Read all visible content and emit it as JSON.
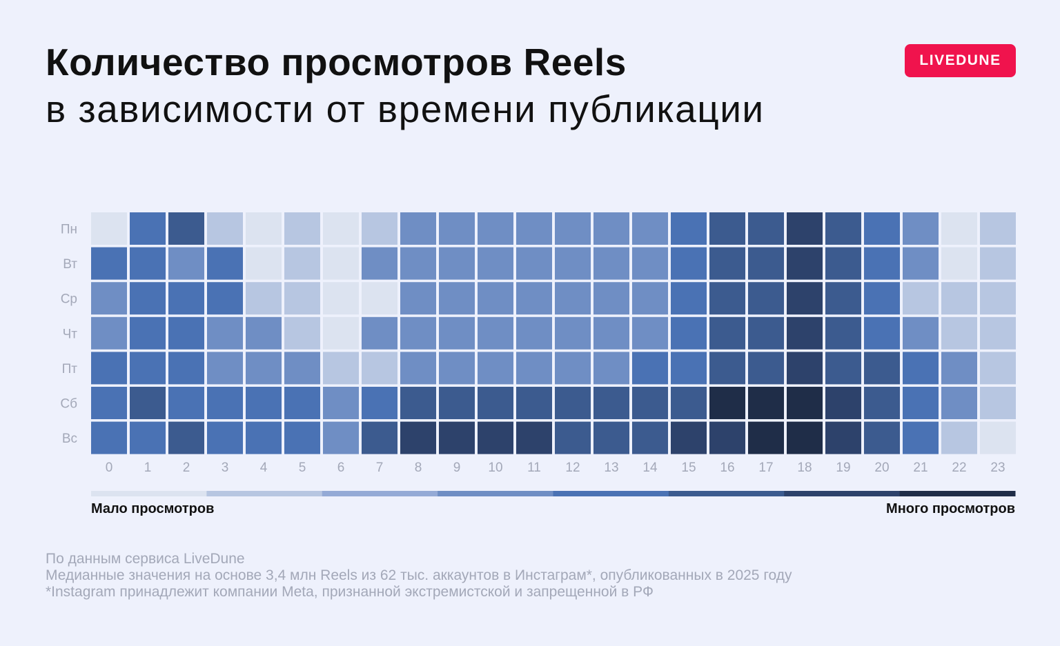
{
  "header": {
    "title": "Количество просмотров Reels",
    "subtitle": "в зависимости от времени публикации",
    "logo_text": "LIVEDUNE",
    "logo_color": "#f0134d"
  },
  "chart_data": {
    "type": "heatmap",
    "x_categories": [
      "0",
      "1",
      "2",
      "3",
      "4",
      "5",
      "6",
      "7",
      "8",
      "9",
      "10",
      "11",
      "12",
      "13",
      "14",
      "15",
      "16",
      "17",
      "18",
      "19",
      "20",
      "21",
      "22",
      "23"
    ],
    "y_categories": [
      "Пн",
      "Вт",
      "Ср",
      "Чт",
      "Пт",
      "Сб",
      "Вс"
    ],
    "value_scale": "ordinal levels 1 (few views) to 8 (many views)",
    "levels": [
      1,
      2,
      3,
      4,
      5,
      6,
      7,
      8
    ],
    "level_colors": [
      "#dce3f0",
      "#b7c6e1",
      "#94aad6",
      "#6f8ec4",
      "#4a72b4",
      "#3c5b8f",
      "#2d426b",
      "#1f2d48"
    ],
    "values": [
      [
        1,
        5,
        6,
        2,
        1,
        2,
        1,
        2,
        4,
        4,
        4,
        4,
        4,
        4,
        4,
        5,
        6,
        6,
        7,
        6,
        5,
        4,
        1,
        2
      ],
      [
        5,
        5,
        4,
        5,
        1,
        2,
        1,
        4,
        4,
        4,
        4,
        4,
        4,
        4,
        4,
        5,
        6,
        6,
        7,
        6,
        5,
        4,
        1,
        2
      ],
      [
        4,
        5,
        5,
        5,
        2,
        2,
        1,
        1,
        4,
        4,
        4,
        4,
        4,
        4,
        4,
        5,
        6,
        6,
        7,
        6,
        5,
        2,
        2,
        2
      ],
      [
        4,
        5,
        5,
        4,
        4,
        2,
        1,
        4,
        4,
        4,
        4,
        4,
        4,
        4,
        4,
        5,
        6,
        6,
        7,
        6,
        5,
        4,
        2,
        2
      ],
      [
        5,
        5,
        5,
        4,
        4,
        4,
        2,
        2,
        4,
        4,
        4,
        4,
        4,
        4,
        5,
        5,
        6,
        6,
        7,
        6,
        6,
        5,
        4,
        2
      ],
      [
        5,
        6,
        5,
        5,
        5,
        5,
        4,
        5,
        6,
        6,
        6,
        6,
        6,
        6,
        6,
        6,
        8,
        8,
        8,
        7,
        6,
        5,
        4,
        2
      ],
      [
        5,
        5,
        6,
        5,
        5,
        5,
        4,
        6,
        7,
        7,
        7,
        7,
        6,
        6,
        6,
        7,
        7,
        8,
        8,
        7,
        6,
        5,
        2,
        1
      ]
    ],
    "legend": {
      "low_label": "Мало просмотров",
      "high_label": "Много просмотров",
      "placement": "bottom"
    }
  },
  "footer": {
    "source": "По данным сервиса LiveDune",
    "note": "Медианные значения на основе 3,4 млн Reels из 62 тыс. аккаунтов в Инстаграм*, опубликованных в 2025 году",
    "disclaimer": "*Instagram принадлежит компании Meta, признанной экстремистской и запрещенной в РФ"
  }
}
